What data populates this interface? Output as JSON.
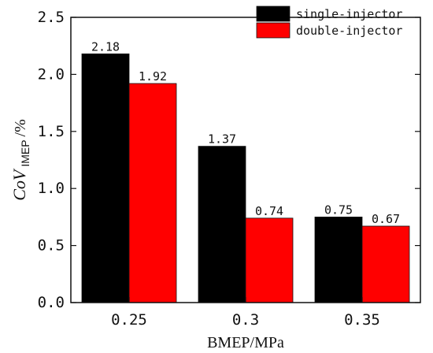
{
  "chart_data": {
    "type": "bar",
    "categories": [
      "0.25",
      "0.3",
      "0.35"
    ],
    "series": [
      {
        "name": "single-injector",
        "values": [
          2.18,
          1.37,
          0.75
        ],
        "labels": [
          "2.18",
          "1.37",
          "0.75"
        ],
        "color": "#000000"
      },
      {
        "name": "double-injector",
        "values": [
          1.92,
          0.74,
          0.67
        ],
        "labels": [
          "1.92",
          "0.74",
          "0.67"
        ],
        "color": "#ff0000"
      }
    ],
    "title": "",
    "xlabel": "BMEP/MPa",
    "ylabel": {
      "main": "CoV",
      "subscript": "IMEP",
      "suffix": "/%"
    },
    "ylim": [
      0,
      2.5
    ],
    "yticks": [
      "0.0",
      "0.5",
      "1.0",
      "1.5",
      "2.0",
      "2.5"
    ],
    "grid": false,
    "legend_position": "top-right"
  }
}
